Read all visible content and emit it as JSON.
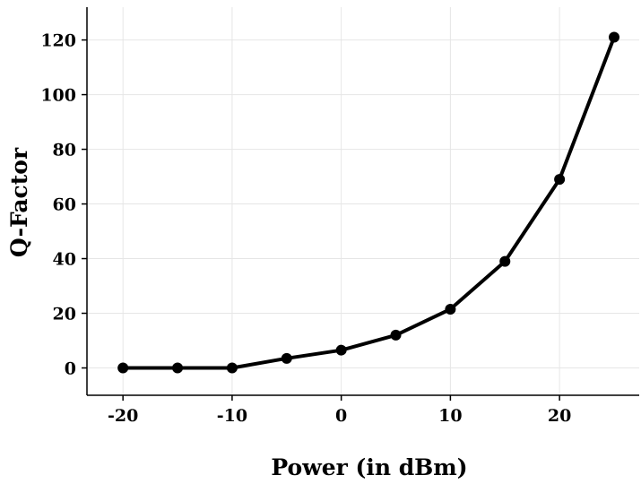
{
  "chart_data": {
    "type": "line",
    "xlabel": "Power (in dBm)",
    "ylabel": "Q-Factor",
    "xlim": [
      -23.3,
      27.3
    ],
    "ylim": [
      -10,
      132
    ],
    "xticks": [
      -20,
      -10,
      0,
      10,
      20
    ],
    "yticks": [
      0,
      20,
      40,
      60,
      80,
      100,
      120
    ],
    "xtick_labels": [
      "-20",
      "-10",
      "0",
      "10",
      "20"
    ],
    "ytick_labels": [
      "0",
      "20",
      "40",
      "60",
      "80",
      "100",
      "120"
    ],
    "grid": true,
    "legend": "none",
    "series": [
      {
        "color": "#000000",
        "marker": "circle",
        "x": [
          -20,
          -15,
          -10,
          -5,
          0,
          5,
          10,
          15,
          20,
          25
        ],
        "y": [
          0,
          0,
          0,
          3.5,
          6.5,
          12,
          21.5,
          39,
          69,
          121
        ]
      }
    ]
  }
}
